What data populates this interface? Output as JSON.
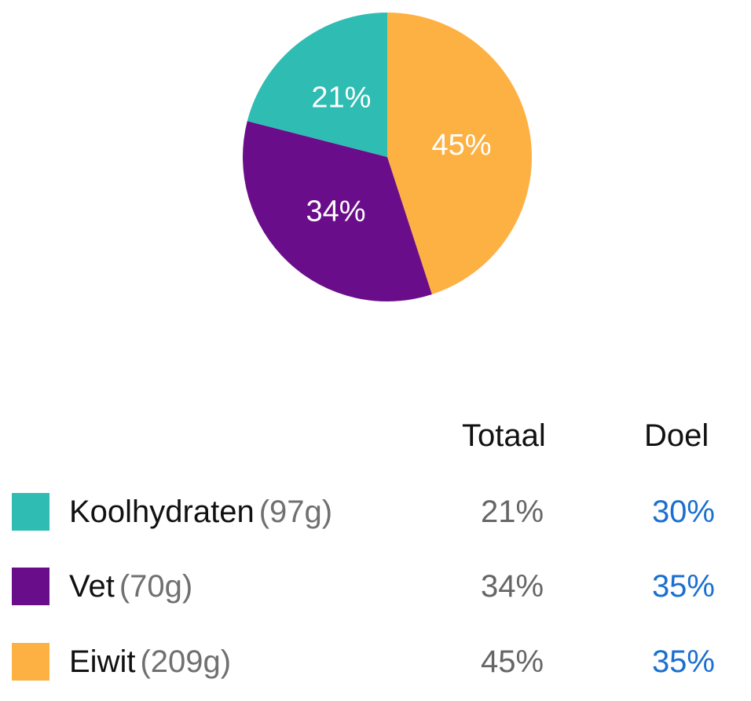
{
  "chart_data": {
    "type": "pie",
    "slices": [
      {
        "name": "Eiwit",
        "value": 45,
        "label": "45%",
        "color": "#fdb143"
      },
      {
        "name": "Vet",
        "value": 34,
        "label": "34%",
        "color": "#6a0d8a"
      },
      {
        "name": "Koolhydraten",
        "value": 21,
        "label": "21%",
        "color": "#2fbcb2"
      }
    ],
    "legend_placement": "bottom"
  },
  "table": {
    "headers": {
      "totaal": "Totaal",
      "doel": "Doel"
    },
    "rows": [
      {
        "name": "Koolhydraten",
        "grams": "(97g)",
        "totaal": "21%",
        "doel": "30%",
        "color": "#2fbcb2"
      },
      {
        "name": "Vet",
        "grams": "(70g)",
        "totaal": "34%",
        "doel": "35%",
        "color": "#6a0d8a"
      },
      {
        "name": "Eiwit",
        "grams": "(209g)",
        "totaal": "45%",
        "doel": "35%",
        "color": "#fdb143"
      }
    ]
  }
}
